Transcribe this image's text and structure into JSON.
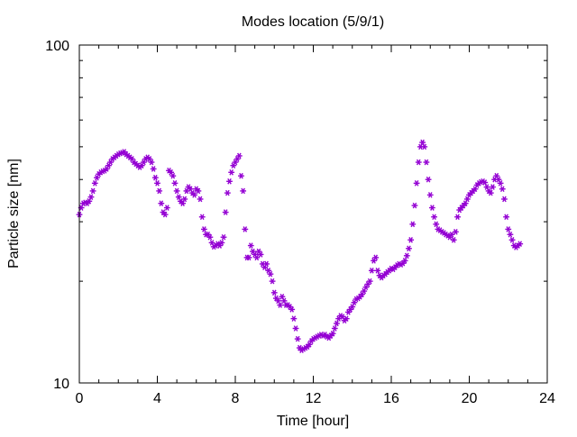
{
  "chart_data": {
    "type": "scatter",
    "title": "Modes location (5/9/1)",
    "xlabel": "Time [hour]",
    "ylabel": "Particle size [nm]",
    "xlim": [
      0,
      24
    ],
    "ylim": [
      10,
      100
    ],
    "yscale": "log",
    "x_ticks": [
      0,
      4,
      8,
      12,
      16,
      20,
      24
    ],
    "x_tick_labels": [
      "0",
      "4",
      "8",
      "12",
      "16",
      "20",
      "24"
    ],
    "y_tick_labels": [
      "10",
      "100"
    ],
    "grid": false,
    "legend": "none",
    "marker": "asterisk",
    "series": [
      {
        "color": "#9400d3",
        "points": [
          [
            0.0,
            31.5
          ],
          [
            0.1,
            33
          ],
          [
            0.2,
            34
          ],
          [
            0.3,
            34.2
          ],
          [
            0.4,
            34
          ],
          [
            0.5,
            34.5
          ],
          [
            0.6,
            35.5
          ],
          [
            0.7,
            37
          ],
          [
            0.8,
            39
          ],
          [
            0.9,
            40.5
          ],
          [
            1.0,
            41.5
          ],
          [
            1.1,
            42
          ],
          [
            1.2,
            42.3
          ],
          [
            1.3,
            42.5
          ],
          [
            1.4,
            43
          ],
          [
            1.5,
            44
          ],
          [
            1.6,
            45
          ],
          [
            1.7,
            46
          ],
          [
            1.8,
            46.5
          ],
          [
            1.9,
            47
          ],
          [
            2.0,
            47.5
          ],
          [
            2.1,
            47.8
          ],
          [
            2.2,
            48
          ],
          [
            2.3,
            48.3
          ],
          [
            2.4,
            47.5
          ],
          [
            2.5,
            47
          ],
          [
            2.6,
            46.5
          ],
          [
            2.7,
            46
          ],
          [
            2.8,
            45
          ],
          [
            2.9,
            44.5
          ],
          [
            3.0,
            44
          ],
          [
            3.1,
            43.5
          ],
          [
            3.2,
            44
          ],
          [
            3.3,
            45
          ],
          [
            3.4,
            46
          ],
          [
            3.5,
            46.5
          ],
          [
            3.6,
            46
          ],
          [
            3.7,
            45
          ],
          [
            3.8,
            43
          ],
          [
            3.9,
            40.5
          ],
          [
            4.0,
            39
          ],
          [
            4.1,
            37
          ],
          [
            4.2,
            34
          ],
          [
            4.3,
            32
          ],
          [
            4.4,
            31.5
          ],
          [
            4.5,
            33
          ],
          [
            4.6,
            42.5
          ],
          [
            4.7,
            42
          ],
          [
            4.8,
            41
          ],
          [
            4.9,
            39
          ],
          [
            5.0,
            37
          ],
          [
            5.1,
            35.5
          ],
          [
            5.2,
            34.5
          ],
          [
            5.3,
            34
          ],
          [
            5.4,
            35
          ],
          [
            5.5,
            37
          ],
          [
            5.6,
            38
          ],
          [
            5.7,
            37.5
          ],
          [
            5.8,
            36.5
          ],
          [
            5.9,
            36
          ],
          [
            6.0,
            37.5
          ],
          [
            6.1,
            37
          ],
          [
            6.2,
            35
          ],
          [
            6.3,
            31
          ],
          [
            6.4,
            28.5
          ],
          [
            6.5,
            27.5
          ],
          [
            6.6,
            27.5
          ],
          [
            6.7,
            27
          ],
          [
            6.8,
            26
          ],
          [
            6.9,
            25.3
          ],
          [
            7.0,
            25.5
          ],
          [
            7.1,
            25.8
          ],
          [
            7.2,
            25.5
          ],
          [
            7.3,
            26
          ],
          [
            7.4,
            27
          ],
          [
            7.5,
            32
          ],
          [
            7.6,
            36.5
          ],
          [
            7.7,
            39.5
          ],
          [
            7.8,
            42
          ],
          [
            7.9,
            44
          ],
          [
            8.0,
            45
          ],
          [
            8.1,
            46
          ],
          [
            8.2,
            47
          ],
          [
            8.3,
            41
          ],
          [
            8.4,
            37
          ],
          [
            8.5,
            28.5
          ],
          [
            8.6,
            23.5
          ],
          [
            8.7,
            23.5
          ],
          [
            8.8,
            25.5
          ],
          [
            8.9,
            24.5
          ],
          [
            9.0,
            24
          ],
          [
            9.1,
            23.5
          ],
          [
            9.2,
            24.5
          ],
          [
            9.3,
            24
          ],
          [
            9.4,
            22.5
          ],
          [
            9.5,
            22
          ],
          [
            9.6,
            22.5
          ],
          [
            9.7,
            21.5
          ],
          [
            9.8,
            21
          ],
          [
            9.9,
            20
          ],
          [
            10.0,
            18.5
          ],
          [
            10.1,
            17.8
          ],
          [
            10.2,
            17.5
          ],
          [
            10.3,
            17
          ],
          [
            10.4,
            18
          ],
          [
            10.5,
            17.5
          ],
          [
            10.6,
            17
          ],
          [
            10.7,
            17
          ],
          [
            10.8,
            16.8
          ],
          [
            10.9,
            16.5
          ],
          [
            11.0,
            15.5
          ],
          [
            11.1,
            14.5
          ],
          [
            11.2,
            13.5
          ],
          [
            11.3,
            12.7
          ],
          [
            11.4,
            12.5
          ],
          [
            11.5,
            12.6
          ],
          [
            11.6,
            12.7
          ],
          [
            11.7,
            12.8
          ],
          [
            11.8,
            13
          ],
          [
            11.9,
            13.3
          ],
          [
            12.0,
            13.5
          ],
          [
            12.1,
            13.6
          ],
          [
            12.2,
            13.7
          ],
          [
            12.3,
            13.8
          ],
          [
            12.4,
            13.9
          ],
          [
            12.5,
            13.8
          ],
          [
            12.6,
            13.9
          ],
          [
            12.7,
            13.7
          ],
          [
            12.8,
            13.6
          ],
          [
            12.9,
            13.8
          ],
          [
            13.0,
            14
          ],
          [
            13.1,
            14.5
          ],
          [
            13.2,
            15
          ],
          [
            13.3,
            15.5
          ],
          [
            13.4,
            15.8
          ],
          [
            13.5,
            15.7
          ],
          [
            13.6,
            15.3
          ],
          [
            13.7,
            15.5
          ],
          [
            13.8,
            16.2
          ],
          [
            13.9,
            16.5
          ],
          [
            14.0,
            16.8
          ],
          [
            14.1,
            17.3
          ],
          [
            14.2,
            17.7
          ],
          [
            14.3,
            17.8
          ],
          [
            14.4,
            18
          ],
          [
            14.5,
            18.3
          ],
          [
            14.6,
            18.7
          ],
          [
            14.7,
            19.2
          ],
          [
            14.8,
            19.6
          ],
          [
            14.9,
            20
          ],
          [
            15.0,
            21.5
          ],
          [
            15.1,
            23
          ],
          [
            15.2,
            23.5
          ],
          [
            15.3,
            21.5
          ],
          [
            15.4,
            20.8
          ],
          [
            15.5,
            20.5
          ],
          [
            15.6,
            20.8
          ],
          [
            15.7,
            21
          ],
          [
            15.8,
            21.3
          ],
          [
            15.9,
            21.5
          ],
          [
            16.0,
            21.8
          ],
          [
            16.1,
            21.7
          ],
          [
            16.2,
            22
          ],
          [
            16.3,
            22.3
          ],
          [
            16.4,
            22.5
          ],
          [
            16.5,
            22.4
          ],
          [
            16.6,
            22.6
          ],
          [
            16.7,
            23
          ],
          [
            16.8,
            23.8
          ],
          [
            16.9,
            25
          ],
          [
            17.0,
            26.5
          ],
          [
            17.1,
            29.5
          ],
          [
            17.2,
            33.5
          ],
          [
            17.3,
            39
          ],
          [
            17.4,
            45
          ],
          [
            17.5,
            50
          ],
          [
            17.6,
            51.5
          ],
          [
            17.7,
            50
          ],
          [
            17.8,
            45
          ],
          [
            17.9,
            40
          ],
          [
            18.0,
            36
          ],
          [
            18.1,
            33
          ],
          [
            18.2,
            31
          ],
          [
            18.3,
            29.5
          ],
          [
            18.4,
            28.5
          ],
          [
            18.5,
            28.3
          ],
          [
            18.6,
            28
          ],
          [
            18.7,
            27.8
          ],
          [
            18.8,
            27.5
          ],
          [
            18.9,
            27.3
          ],
          [
            19.0,
            27
          ],
          [
            19.1,
            27.5
          ],
          [
            19.2,
            26.5
          ],
          [
            19.3,
            28
          ],
          [
            19.4,
            31
          ],
          [
            19.5,
            32.5
          ],
          [
            19.6,
            33
          ],
          [
            19.7,
            33.5
          ],
          [
            19.8,
            34
          ],
          [
            19.9,
            35
          ],
          [
            20.0,
            36
          ],
          [
            20.1,
            36.5
          ],
          [
            20.2,
            37
          ],
          [
            20.3,
            37.5
          ],
          [
            20.4,
            38.5
          ],
          [
            20.5,
            39
          ],
          [
            20.6,
            39.3
          ],
          [
            20.7,
            39.5
          ],
          [
            20.8,
            39.2
          ],
          [
            20.9,
            38
          ],
          [
            21.0,
            37
          ],
          [
            21.1,
            36.5
          ],
          [
            21.2,
            38
          ],
          [
            21.3,
            40
          ],
          [
            21.4,
            41
          ],
          [
            21.5,
            40
          ],
          [
            21.6,
            39
          ],
          [
            21.7,
            37.5
          ],
          [
            21.8,
            35
          ],
          [
            21.9,
            31
          ],
          [
            22.0,
            28.5
          ],
          [
            22.1,
            27.5
          ],
          [
            22.2,
            26.5
          ],
          [
            22.3,
            25.5
          ],
          [
            22.4,
            25.2
          ],
          [
            22.5,
            25.5
          ],
          [
            22.6,
            25.8
          ]
        ]
      }
    ]
  }
}
